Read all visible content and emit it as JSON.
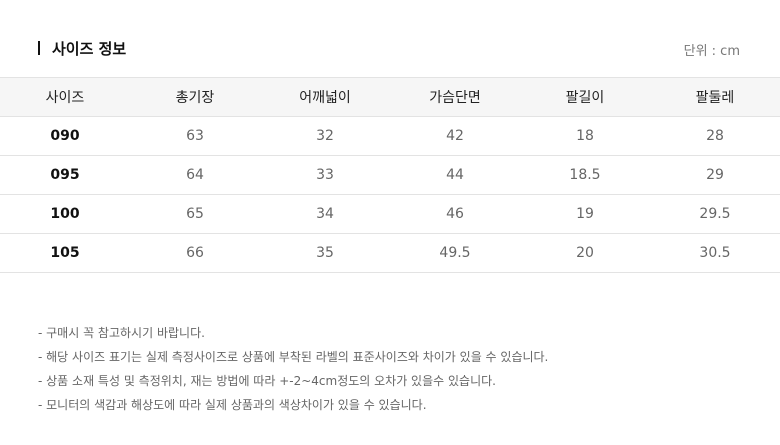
{
  "header": {
    "title": "사이즈 정보",
    "unit": "단위 : cm"
  },
  "table": {
    "columns": [
      "사이즈",
      "총기장",
      "어깨넓이",
      "가슴단면",
      "팔길이",
      "팔둘레"
    ],
    "rows": [
      [
        "090",
        "63",
        "32",
        "42",
        "18",
        "28"
      ],
      [
        "095",
        "64",
        "33",
        "44",
        "18.5",
        "29"
      ],
      [
        "100",
        "65",
        "34",
        "46",
        "19",
        "29.5"
      ],
      [
        "105",
        "66",
        "35",
        "49.5",
        "20",
        "30.5"
      ]
    ]
  },
  "notes": [
    "- 구매시 꼭 참고하시기 바랍니다.",
    "- 해당 사이즈 표기는 실제 측정사이즈로 상품에 부착된 라벨의 표준사이즈와 차이가 있을 수 있습니다.",
    "- 상품 소재 특성 및 측정위치, 재는 방법에 따라 +-2~4cm정도의 오차가 있을수 있습니다.",
    "- 모니터의 색감과 해상도에 따라 실제 상품과의 색상차이가 있을 수 있습니다."
  ]
}
